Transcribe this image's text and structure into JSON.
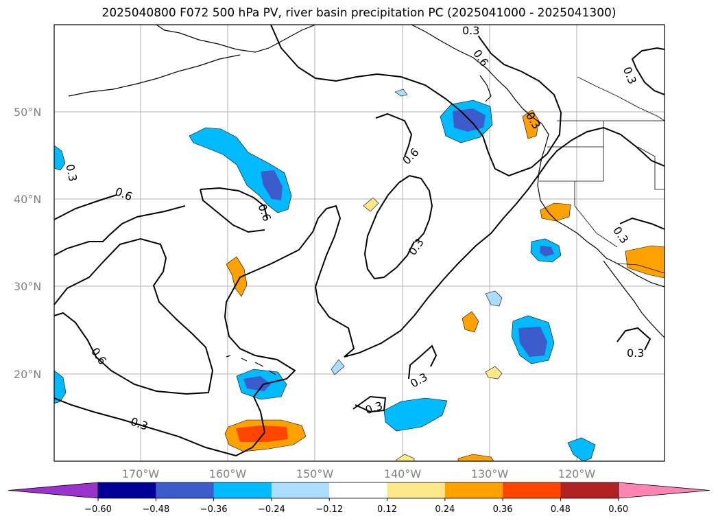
{
  "title": "2025040800 F072 500 hPa PV, river basin precipitation PC (2025041000 - 2025041300)",
  "latitude_labels": [
    "50°N",
    "40°N",
    "30°N",
    "20°N"
  ],
  "longitude_labels": [
    "170°W",
    "160°W",
    "150°W",
    "140°W",
    "130°W",
    "120°W"
  ],
  "colorbar": {
    "colors": [
      "#9933cc",
      "#000099",
      "#3d5ccc",
      "#00bbff",
      "#aaddff",
      "#ffffff",
      "#ffe88a",
      "#ffa200",
      "#ff4500",
      "#b22222",
      "#ff85b0"
    ],
    "tick_labels": [
      "−0.60",
      "−0.48",
      "−0.36",
      "−0.24",
      "−0.12",
      "0.12",
      "0.24",
      "0.36",
      "0.48",
      "0.60"
    ]
  },
  "contour_labels": {
    "c1": "0.3",
    "c2": "0.6",
    "c3": "0.3",
    "c4": "0.3",
    "c5": "0.6",
    "c6": "0.6",
    "c7": "0.6",
    "c8": "0.3",
    "c9": "0.6",
    "c10": "0.3",
    "c11": "0.3",
    "c12": "0.3",
    "c13": "0.3",
    "c14": "0.3",
    "c15": "0.3"
  }
}
